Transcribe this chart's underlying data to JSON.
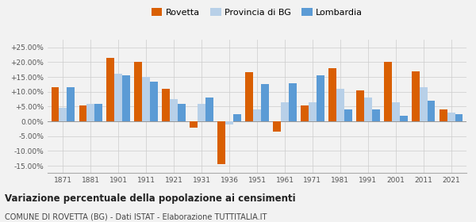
{
  "years": [
    1871,
    1881,
    1901,
    1911,
    1921,
    1931,
    1936,
    1951,
    1961,
    1971,
    1981,
    1991,
    2001,
    2011,
    2021
  ],
  "rovetta": [
    11.5,
    5.5,
    21.5,
    20.0,
    11.0,
    -2.0,
    -14.5,
    16.5,
    -3.5,
    5.5,
    18.0,
    10.5,
    20.0,
    17.0,
    4.0
  ],
  "provincia_bg": [
    4.5,
    6.0,
    16.0,
    15.0,
    7.5,
    6.0,
    -1.0,
    4.0,
    6.5,
    6.5,
    11.0,
    8.0,
    6.5,
    11.5,
    3.0
  ],
  "lombardia": [
    11.5,
    6.0,
    15.5,
    13.5,
    6.0,
    8.0,
    2.5,
    12.5,
    13.0,
    15.5,
    4.0,
    4.0,
    2.0,
    7.0,
    2.5
  ],
  "color_rovetta": "#d95f02",
  "color_provincia": "#b8d0e8",
  "color_lombardia": "#5b9bd5",
  "title1": "Variazione percentuale della popolazione ai censimenti",
  "title2": "COMUNE DI ROVETTA (BG) - Dati ISTAT - Elaborazione TUTTITALIA.IT",
  "legend_labels": [
    "Rovetta",
    "Provincia di BG",
    "Lombardia"
  ],
  "ylim": [
    -17.5,
    27.5
  ],
  "yticks": [
    -15,
    -10,
    -5,
    0,
    5,
    10,
    15,
    20,
    25
  ],
  "ytick_labels": [
    "-15.00%",
    "-10.00%",
    "-5.00%",
    "0.00%",
    "+5.00%",
    "+10.00%",
    "+15.00%",
    "+20.00%",
    "+25.00%"
  ],
  "bg_color": "#f2f2f2"
}
